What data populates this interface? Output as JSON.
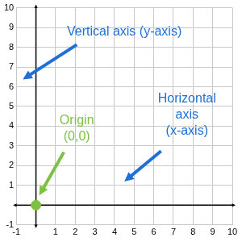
{
  "chart_data": {
    "type": "scatter",
    "xlim": [
      -1,
      10
    ],
    "ylim": [
      -1,
      10
    ],
    "xticks": [
      -1,
      1,
      2,
      3,
      4,
      5,
      6,
      7,
      8,
      9,
      10
    ],
    "yticks": [
      -1,
      1,
      2,
      3,
      4,
      5,
      6,
      7,
      8,
      9,
      10
    ],
    "grid": true,
    "x": [
      0
    ],
    "values": [
      0
    ],
    "color": "#7cc142",
    "annotations": [
      {
        "text": [
          "Vertical axis (y-axis)"
        ],
        "color": "#1f6fd8"
      },
      {
        "text": [
          "Horizontal",
          "axis",
          "(x-axis)"
        ],
        "color": "#1f6fd8"
      },
      {
        "text": [
          "Origin",
          "(0,0)"
        ],
        "color": "#7cc142"
      }
    ]
  }
}
